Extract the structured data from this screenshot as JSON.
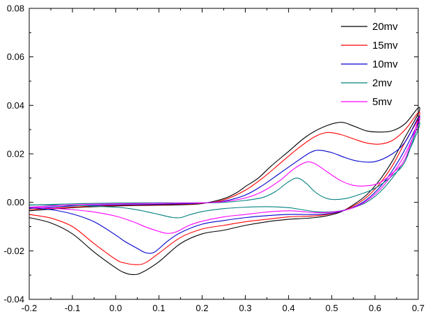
{
  "chart_data": {
    "type": "line",
    "title": "",
    "xlabel": "",
    "ylabel": "",
    "xlim": [
      -0.2,
      0.7
    ],
    "ylim": [
      -0.04,
      0.08
    ],
    "grid": false,
    "legend_position": "top-right",
    "x_ticks": [
      -0.2,
      -0.1,
      0.0,
      0.1,
      0.2,
      0.3,
      0.4,
      0.5,
      0.6,
      0.7
    ],
    "x_tick_labels": [
      "-0.2",
      "-0.1",
      "0.0",
      "0.1",
      "0.2",
      "0.3",
      "0.4",
      "0.5",
      "0.6",
      "0.7"
    ],
    "x_minor_step": 0.05,
    "y_ticks": [
      -0.04,
      -0.02,
      0.0,
      0.02,
      0.04,
      0.06,
      0.08
    ],
    "y_tick_labels": [
      "-0.04",
      "-0.02",
      "0.00",
      "0.02",
      "0.04",
      "0.06",
      "0.08"
    ],
    "y_minor_step": 0.01,
    "series": [
      {
        "name": "20mv",
        "color": "#000000",
        "points": [
          [
            -0.2,
            -0.0035
          ],
          [
            -0.15,
            -0.0028
          ],
          [
            -0.1,
            -0.0022
          ],
          [
            -0.05,
            -0.0018
          ],
          [
            0,
            -0.0015
          ],
          [
            0.05,
            -0.0013
          ],
          [
            0.1,
            -0.0012
          ],
          [
            0.15,
            -0.001
          ],
          [
            0.2,
            -0.0005
          ],
          [
            0.25,
            0.0015
          ],
          [
            0.28,
            0.004
          ],
          [
            0.3,
            0.0065
          ],
          [
            0.33,
            0.01
          ],
          [
            0.36,
            0.015
          ],
          [
            0.4,
            0.021
          ],
          [
            0.44,
            0.027
          ],
          [
            0.48,
            0.031
          ],
          [
            0.52,
            0.033
          ],
          [
            0.55,
            0.0315
          ],
          [
            0.58,
            0.0295
          ],
          [
            0.61,
            0.029
          ],
          [
            0.64,
            0.0295
          ],
          [
            0.67,
            0.0325
          ],
          [
            0.7,
            0.039
          ],
          [
            0.7,
            0.0365
          ],
          [
            0.67,
            0.027
          ],
          [
            0.64,
            0.017
          ],
          [
            0.61,
            0.009
          ],
          [
            0.58,
            0.003
          ],
          [
            0.55,
            -0.001
          ],
          [
            0.52,
            -0.004
          ],
          [
            0.49,
            -0.0055
          ],
          [
            0.46,
            -0.0063
          ],
          [
            0.43,
            -0.0067
          ],
          [
            0.4,
            -0.007
          ],
          [
            0.35,
            -0.008
          ],
          [
            0.3,
            -0.0095
          ],
          [
            0.25,
            -0.0115
          ],
          [
            0.2,
            -0.013
          ],
          [
            0.15,
            -0.017
          ],
          [
            0.1,
            -0.0245
          ],
          [
            0.06,
            -0.029
          ],
          [
            0.04,
            -0.0298
          ],
          [
            0.02,
            -0.029
          ],
          [
            0,
            -0.027
          ],
          [
            -0.05,
            -0.0205
          ],
          [
            -0.1,
            -0.013
          ],
          [
            -0.15,
            -0.0085
          ],
          [
            -0.2,
            -0.0063
          ]
        ]
      },
      {
        "name": "15mv",
        "color": "#ff0000",
        "points": [
          [
            -0.2,
            -0.003
          ],
          [
            -0.1,
            -0.002
          ],
          [
            0,
            -0.0013
          ],
          [
            0.1,
            -0.001
          ],
          [
            0.2,
            -0.0004
          ],
          [
            0.25,
            0.001
          ],
          [
            0.3,
            0.005
          ],
          [
            0.34,
            0.01
          ],
          [
            0.38,
            0.016
          ],
          [
            0.42,
            0.022
          ],
          [
            0.46,
            0.027
          ],
          [
            0.49,
            0.0288
          ],
          [
            0.52,
            0.028
          ],
          [
            0.55,
            0.0262
          ],
          [
            0.58,
            0.0245
          ],
          [
            0.61,
            0.024
          ],
          [
            0.64,
            0.0255
          ],
          [
            0.67,
            0.03
          ],
          [
            0.7,
            0.037
          ],
          [
            0.7,
            0.0345
          ],
          [
            0.67,
            0.025
          ],
          [
            0.64,
            0.015
          ],
          [
            0.61,
            0.0075
          ],
          [
            0.58,
            0.002
          ],
          [
            0.55,
            -0.0015
          ],
          [
            0.52,
            -0.0038
          ],
          [
            0.49,
            -0.005
          ],
          [
            0.46,
            -0.0056
          ],
          [
            0.43,
            -0.0058
          ],
          [
            0.4,
            -0.006
          ],
          [
            0.35,
            -0.007
          ],
          [
            0.3,
            -0.008
          ],
          [
            0.25,
            -0.0095
          ],
          [
            0.2,
            -0.011
          ],
          [
            0.15,
            -0.0145
          ],
          [
            0.1,
            -0.021
          ],
          [
            0.07,
            -0.0248
          ],
          [
            0.05,
            -0.0257
          ],
          [
            0.02,
            -0.025
          ],
          [
            0,
            -0.0235
          ],
          [
            -0.05,
            -0.017
          ],
          [
            -0.1,
            -0.01
          ],
          [
            -0.15,
            -0.0065
          ],
          [
            -0.2,
            -0.005
          ]
        ]
      },
      {
        "name": "10mv",
        "color": "#0000cd",
        "points": [
          [
            -0.2,
            -0.0025
          ],
          [
            -0.1,
            -0.0015
          ],
          [
            0,
            -0.001
          ],
          [
            0.1,
            -0.0008
          ],
          [
            0.2,
            -0.0003
          ],
          [
            0.25,
            0.0005
          ],
          [
            0.3,
            0.003
          ],
          [
            0.34,
            0.007
          ],
          [
            0.38,
            0.012
          ],
          [
            0.42,
            0.017
          ],
          [
            0.45,
            0.0205
          ],
          [
            0.47,
            0.0215
          ],
          [
            0.5,
            0.0205
          ],
          [
            0.53,
            0.0185
          ],
          [
            0.56,
            0.017
          ],
          [
            0.6,
            0.0168
          ],
          [
            0.64,
            0.02
          ],
          [
            0.67,
            0.025
          ],
          [
            0.7,
            0.035
          ],
          [
            0.7,
            0.033
          ],
          [
            0.67,
            0.022
          ],
          [
            0.64,
            0.013
          ],
          [
            0.61,
            0.006
          ],
          [
            0.58,
            0.001
          ],
          [
            0.55,
            -0.002
          ],
          [
            0.52,
            -0.0038
          ],
          [
            0.49,
            -0.0047
          ],
          [
            0.46,
            -0.005
          ],
          [
            0.43,
            -0.005
          ],
          [
            0.4,
            -0.005
          ],
          [
            0.35,
            -0.0055
          ],
          [
            0.3,
            -0.0063
          ],
          [
            0.25,
            -0.0075
          ],
          [
            0.2,
            -0.009
          ],
          [
            0.15,
            -0.0125
          ],
          [
            0.12,
            -0.016
          ],
          [
            0.09,
            -0.0205
          ],
          [
            0.07,
            -0.0208
          ],
          [
            0.05,
            -0.019
          ],
          [
            0.02,
            -0.016
          ],
          [
            0,
            -0.0135
          ],
          [
            -0.05,
            -0.008
          ],
          [
            -0.1,
            -0.0048
          ],
          [
            -0.15,
            -0.003
          ],
          [
            -0.2,
            -0.0022
          ]
        ]
      },
      {
        "name": "2mv",
        "color": "#008080",
        "points": [
          [
            -0.2,
            -0.0012
          ],
          [
            -0.1,
            -0.0006
          ],
          [
            0,
            -0.0003
          ],
          [
            0.1,
            -0.0002
          ],
          [
            0.2,
            -0.0002
          ],
          [
            0.25,
            0.0
          ],
          [
            0.3,
            0.0008
          ],
          [
            0.34,
            0.002
          ],
          [
            0.37,
            0.0045
          ],
          [
            0.4,
            0.0085
          ],
          [
            0.42,
            0.01
          ],
          [
            0.44,
            0.008
          ],
          [
            0.46,
            0.0045
          ],
          [
            0.48,
            0.0022
          ],
          [
            0.5,
            0.0012
          ],
          [
            0.53,
            0.0015
          ],
          [
            0.56,
            0.003
          ],
          [
            0.6,
            0.0058
          ],
          [
            0.64,
            0.011
          ],
          [
            0.67,
            0.017
          ],
          [
            0.7,
            0.032
          ],
          [
            0.7,
            0.03
          ],
          [
            0.67,
            0.018
          ],
          [
            0.64,
            0.01
          ],
          [
            0.61,
            0.004
          ],
          [
            0.58,
            0.0
          ],
          [
            0.55,
            -0.0022
          ],
          [
            0.52,
            -0.0035
          ],
          [
            0.49,
            -0.004
          ],
          [
            0.46,
            -0.0038
          ],
          [
            0.43,
            -0.003
          ],
          [
            0.4,
            -0.0022
          ],
          [
            0.35,
            -0.0018
          ],
          [
            0.3,
            -0.002
          ],
          [
            0.25,
            -0.0026
          ],
          [
            0.2,
            -0.0038
          ],
          [
            0.17,
            -0.0052
          ],
          [
            0.15,
            -0.0063
          ],
          [
            0.13,
            -0.0062
          ],
          [
            0.1,
            -0.005
          ],
          [
            0.07,
            -0.0038
          ],
          [
            0.04,
            -0.0028
          ],
          [
            0,
            -0.002
          ],
          [
            -0.1,
            -0.0013
          ],
          [
            -0.2,
            -0.001
          ]
        ]
      },
      {
        "name": "5mv",
        "color": "#ff00ff",
        "points": [
          [
            -0.2,
            -0.002
          ],
          [
            -0.1,
            -0.001
          ],
          [
            0,
            -0.0006
          ],
          [
            0.1,
            -0.0004
          ],
          [
            0.2,
            -0.0002
          ],
          [
            0.25,
            0.0003
          ],
          [
            0.3,
            0.0018
          ],
          [
            0.34,
            0.0045
          ],
          [
            0.38,
            0.009
          ],
          [
            0.41,
            0.0135
          ],
          [
            0.44,
            0.0165
          ],
          [
            0.46,
            0.016
          ],
          [
            0.49,
            0.0125
          ],
          [
            0.52,
            0.009
          ],
          [
            0.55,
            0.007
          ],
          [
            0.58,
            0.0068
          ],
          [
            0.61,
            0.008
          ],
          [
            0.64,
            0.012
          ],
          [
            0.67,
            0.018
          ],
          [
            0.7,
            0.034
          ],
          [
            0.7,
            0.032
          ],
          [
            0.67,
            0.02
          ],
          [
            0.64,
            0.0115
          ],
          [
            0.61,
            0.005
          ],
          [
            0.58,
            0.0005
          ],
          [
            0.55,
            -0.0022
          ],
          [
            0.52,
            -0.0036
          ],
          [
            0.49,
            -0.0042
          ],
          [
            0.46,
            -0.0042
          ],
          [
            0.43,
            -0.0038
          ],
          [
            0.4,
            -0.0035
          ],
          [
            0.35,
            -0.004
          ],
          [
            0.3,
            -0.005
          ],
          [
            0.25,
            -0.006
          ],
          [
            0.2,
            -0.0078
          ],
          [
            0.17,
            -0.0095
          ],
          [
            0.14,
            -0.0122
          ],
          [
            0.12,
            -0.0128
          ],
          [
            0.1,
            -0.012
          ],
          [
            0.07,
            -0.0102
          ],
          [
            0.04,
            -0.008
          ],
          [
            0,
            -0.0057
          ],
          [
            -0.05,
            -0.004
          ],
          [
            -0.1,
            -0.003
          ],
          [
            -0.15,
            -0.0024
          ],
          [
            -0.2,
            -0.002
          ]
        ]
      }
    ],
    "legend": {
      "entries": [
        {
          "label": "20mv",
          "color": "#000000"
        },
        {
          "label": "15mv",
          "color": "#ff0000"
        },
        {
          "label": "10mv",
          "color": "#0000cd"
        },
        {
          "label": "2mv",
          "color": "#008080"
        },
        {
          "label": "5mv",
          "color": "#ff00ff"
        }
      ]
    },
    "colors": {
      "frame": "#000000",
      "background": "#ffffff",
      "text": "#000000"
    }
  }
}
